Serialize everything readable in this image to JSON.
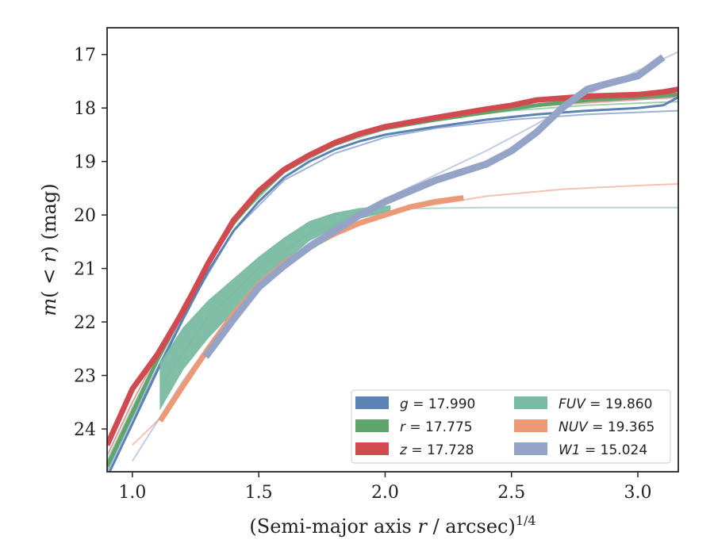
{
  "chart_data": {
    "type": "line",
    "xlabel_main": "(Semi-major axis ",
    "xlabel_var": "r",
    "xlabel_unit": " / arcsec)",
    "xlabel_exp": "1/4",
    "ylabel_main": "m",
    "ylabel_open": "(",
    "ylabel_lt": " < ",
    "ylabel_var": "r",
    "ylabel_close": ") (mag)",
    "xlim": [
      0.9,
      3.16
    ],
    "ylim": [
      24.8,
      16.5
    ],
    "y_inverted": true,
    "xticks": [
      1.0,
      1.5,
      2.0,
      2.5,
      3.0
    ],
    "xtick_labels": [
      "1.0",
      "1.5",
      "2.0",
      "2.5",
      "3.0"
    ],
    "yticks": [
      17,
      18,
      19,
      20,
      21,
      22,
      23,
      24
    ],
    "ytick_labels": [
      "17",
      "18",
      "19",
      "20",
      "21",
      "22",
      "23",
      "24"
    ],
    "grid": false,
    "legend_position": "lower-right",
    "series": [
      {
        "name": "g",
        "legend_value": " = 17.990",
        "color": "#4c72b0",
        "band": "#5a83b3",
        "data": [
          [
            0.9,
            24.9
          ],
          [
            1.0,
            23.9
          ],
          [
            1.1,
            22.9
          ],
          [
            1.2,
            21.95
          ],
          [
            1.3,
            21.05
          ],
          [
            1.4,
            20.3
          ],
          [
            1.5,
            19.75
          ],
          [
            1.6,
            19.3
          ],
          [
            1.7,
            19.0
          ],
          [
            1.8,
            18.78
          ],
          [
            1.9,
            18.62
          ],
          [
            2.0,
            18.5
          ],
          [
            2.2,
            18.35
          ],
          [
            2.4,
            18.22
          ],
          [
            2.6,
            18.12
          ],
          [
            2.8,
            18.05
          ],
          [
            3.0,
            18.0
          ],
          [
            3.1,
            17.95
          ],
          [
            3.16,
            17.8
          ]
        ],
        "model": [
          [
            0.9,
            24.8
          ],
          [
            1.0,
            23.8
          ],
          [
            1.2,
            21.9
          ],
          [
            1.4,
            20.3
          ],
          [
            1.6,
            19.35
          ],
          [
            1.8,
            18.85
          ],
          [
            2.0,
            18.55
          ],
          [
            2.2,
            18.38
          ],
          [
            2.5,
            18.22
          ],
          [
            2.8,
            18.12
          ],
          [
            3.16,
            18.05
          ]
        ]
      },
      {
        "name": "r",
        "legend_value": " = 17.775",
        "color": "#55a868",
        "band": "#5fa56b",
        "data": [
          [
            0.9,
            24.7
          ],
          [
            1.0,
            23.7
          ],
          [
            1.1,
            22.7
          ],
          [
            1.2,
            21.8
          ],
          [
            1.3,
            20.9
          ],
          [
            1.4,
            20.15
          ],
          [
            1.5,
            19.6
          ],
          [
            1.6,
            19.18
          ],
          [
            1.7,
            18.9
          ],
          [
            1.8,
            18.68
          ],
          [
            1.9,
            18.5
          ],
          [
            2.0,
            18.38
          ],
          [
            2.2,
            18.22
          ],
          [
            2.4,
            18.08
          ],
          [
            2.6,
            17.95
          ],
          [
            2.8,
            17.85
          ],
          [
            3.0,
            17.8
          ],
          [
            3.16,
            17.75
          ]
        ],
        "model": [
          [
            0.9,
            24.6
          ],
          [
            1.0,
            23.6
          ],
          [
            1.2,
            21.75
          ],
          [
            1.4,
            20.15
          ],
          [
            1.6,
            19.2
          ],
          [
            1.8,
            18.7
          ],
          [
            2.0,
            18.4
          ],
          [
            2.2,
            18.22
          ],
          [
            2.5,
            18.05
          ],
          [
            2.8,
            17.95
          ],
          [
            3.16,
            17.88
          ]
        ]
      },
      {
        "name": "z",
        "legend_value": " = 17.728",
        "color": "#c44e52",
        "band": "#d04a4f",
        "data": [
          [
            0.9,
            24.3
          ],
          [
            1.0,
            23.25
          ],
          [
            1.1,
            22.6
          ],
          [
            1.2,
            21.8
          ],
          [
            1.3,
            20.9
          ],
          [
            1.4,
            20.1
          ],
          [
            1.5,
            19.55
          ],
          [
            1.6,
            19.15
          ],
          [
            1.7,
            18.88
          ],
          [
            1.8,
            18.65
          ],
          [
            1.9,
            18.48
          ],
          [
            2.0,
            18.35
          ],
          [
            2.2,
            18.18
          ],
          [
            2.4,
            18.02
          ],
          [
            2.5,
            17.95
          ],
          [
            2.6,
            17.85
          ],
          [
            2.8,
            17.78
          ],
          [
            3.0,
            17.75
          ],
          [
            3.1,
            17.7
          ],
          [
            3.16,
            17.65
          ]
        ],
        "model": [
          [
            0.9,
            24.5
          ],
          [
            1.0,
            23.5
          ],
          [
            1.2,
            21.7
          ],
          [
            1.4,
            20.1
          ],
          [
            1.6,
            19.15
          ],
          [
            1.8,
            18.65
          ],
          [
            2.0,
            18.35
          ],
          [
            2.2,
            18.18
          ],
          [
            2.5,
            18.0
          ],
          [
            2.8,
            17.9
          ],
          [
            3.16,
            17.8
          ]
        ]
      },
      {
        "name": "FUV",
        "legend_value": " = 19.860",
        "color": "#76b7a0",
        "band": "#79bba2",
        "data": [
          [
            1.11,
            23.2
          ],
          [
            1.2,
            22.5
          ],
          [
            1.3,
            21.95
          ],
          [
            1.4,
            21.5
          ],
          [
            1.5,
            21.05
          ],
          [
            1.6,
            20.65
          ],
          [
            1.7,
            20.3
          ],
          [
            1.8,
            20.1
          ],
          [
            1.9,
            19.97
          ],
          [
            2.02,
            19.88
          ]
        ],
        "model": [
          [
            1.11,
            23.2
          ],
          [
            1.3,
            21.9
          ],
          [
            1.5,
            21.0
          ],
          [
            1.7,
            20.35
          ],
          [
            1.9,
            20.0
          ],
          [
            2.1,
            19.88
          ],
          [
            2.4,
            19.86
          ],
          [
            3.16,
            19.86
          ]
        ]
      },
      {
        "name": "NUV",
        "legend_value": " = 19.365",
        "color": "#e8916f",
        "band": "#eb9977",
        "data": [
          [
            1.11,
            23.85
          ],
          [
            1.2,
            23.2
          ],
          [
            1.3,
            22.5
          ],
          [
            1.4,
            21.85
          ],
          [
            1.5,
            21.3
          ],
          [
            1.6,
            20.9
          ],
          [
            1.7,
            20.6
          ],
          [
            1.8,
            20.35
          ],
          [
            1.9,
            20.15
          ],
          [
            2.0,
            20.0
          ],
          [
            2.1,
            19.85
          ],
          [
            2.2,
            19.75
          ],
          [
            2.31,
            19.68
          ]
        ],
        "model": [
          [
            1.0,
            24.3
          ],
          [
            1.11,
            23.8
          ],
          [
            1.3,
            22.45
          ],
          [
            1.5,
            21.25
          ],
          [
            1.7,
            20.55
          ],
          [
            1.9,
            20.15
          ],
          [
            2.1,
            19.88
          ],
          [
            2.4,
            19.65
          ],
          [
            2.7,
            19.52
          ],
          [
            3.0,
            19.45
          ],
          [
            3.16,
            19.42
          ]
        ]
      },
      {
        "name": "W1",
        "legend_value": " = 15.024",
        "color": "#92a2c8",
        "band": "#95a3c7",
        "data": [
          [
            1.29,
            22.65
          ],
          [
            1.4,
            21.95
          ],
          [
            1.5,
            21.35
          ],
          [
            1.6,
            20.95
          ],
          [
            1.7,
            20.6
          ],
          [
            1.8,
            20.3
          ],
          [
            1.9,
            20.0
          ],
          [
            2.0,
            19.75
          ],
          [
            2.1,
            19.55
          ],
          [
            2.2,
            19.35
          ],
          [
            2.3,
            19.2
          ],
          [
            2.4,
            19.05
          ],
          [
            2.5,
            18.8
          ],
          [
            2.6,
            18.45
          ],
          [
            2.7,
            18.0
          ],
          [
            2.8,
            17.65
          ],
          [
            2.9,
            17.52
          ],
          [
            3.0,
            17.4
          ],
          [
            3.1,
            17.05
          ]
        ],
        "model": [
          [
            1.0,
            24.6
          ],
          [
            1.2,
            23.1
          ],
          [
            1.4,
            21.8
          ],
          [
            1.6,
            20.85
          ],
          [
            1.8,
            20.2
          ],
          [
            2.0,
            19.7
          ],
          [
            2.2,
            19.25
          ],
          [
            2.4,
            18.8
          ],
          [
            2.6,
            18.3
          ],
          [
            2.8,
            17.75
          ],
          [
            3.0,
            17.3
          ],
          [
            3.16,
            16.95
          ]
        ]
      }
    ]
  }
}
